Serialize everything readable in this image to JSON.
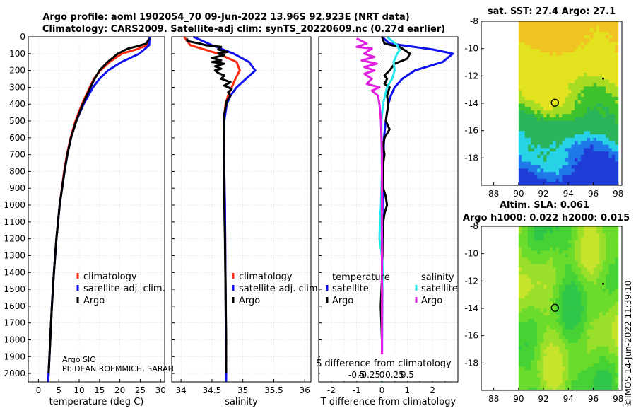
{
  "header": {
    "line1": "Argo profile: aoml 1902054_70 09-Jun-2022 13.96S 92.923E (NRT data)",
    "line2": "Climatology: CARS2009. Satellite-adj clim: synTS_20220609.nc (0.27d earlier)"
  },
  "credit": "©IMOS 14-Jun-2022 11:39:10",
  "colors": {
    "red": "#ff2a10",
    "blue": "#1010f0",
    "black": "#000000",
    "cyan": "#20e8e8",
    "magenta": "#e020e0"
  },
  "depth_axis": {
    "ylim": [
      2050,
      0
    ],
    "ticks": [
      0,
      100,
      200,
      300,
      400,
      500,
      600,
      700,
      800,
      900,
      1000,
      1100,
      1200,
      1300,
      1400,
      1500,
      1600,
      1700,
      1800,
      1900,
      2000
    ]
  },
  "chart_data": [
    {
      "id": "temperature",
      "type": "line",
      "xlabel": "temperature (deg C)",
      "xlim": [
        -2.5,
        31
      ],
      "xticks": [
        0,
        5,
        10,
        15,
        20,
        25,
        30
      ],
      "legend": [
        "climatology",
        "satellite-adj. clim.",
        "Argo"
      ],
      "annotation": [
        "Argo SIO",
        "PI: DEAN ROEMMICH, SARAH"
      ],
      "series": [
        {
          "name": "climatology",
          "color": "red",
          "y": [
            0,
            50,
            75,
            100,
            150,
            200,
            250,
            300,
            400,
            500,
            600,
            700,
            800,
            1000,
            1200,
            1400,
            1600,
            1800,
            2000,
            2050
          ],
          "x": [
            27.3,
            26.8,
            24,
            20.5,
            17.5,
            15.2,
            13.6,
            12.6,
            10.7,
            9.1,
            7.9,
            7.0,
            6.3,
            5.2,
            4.4,
            3.8,
            3.3,
            2.9,
            2.5,
            2.4
          ]
        },
        {
          "name": "satellite-adj. clim.",
          "color": "blue",
          "y": [
            0,
            50,
            100,
            150,
            200,
            250,
            300,
            400,
            500,
            600,
            700,
            800,
            1000,
            1200,
            1400,
            1600,
            1800,
            2000,
            2050
          ],
          "x": [
            27.3,
            27.2,
            24.8,
            20.4,
            17.1,
            15.0,
            13.4,
            11.1,
            9.3,
            8.0,
            7.1,
            6.4,
            5.2,
            4.4,
            3.8,
            3.3,
            2.9,
            2.5,
            2.4
          ]
        },
        {
          "name": "Argo",
          "color": "black",
          "y": [
            10,
            40,
            55,
            70,
            100,
            150,
            200,
            250,
            300,
            400,
            500,
            600,
            700,
            800,
            1000,
            1200,
            1400,
            1600,
            1800,
            2000
          ],
          "x": [
            27.2,
            26.5,
            24.5,
            22,
            19.5,
            17.0,
            15.0,
            13.8,
            12.8,
            10.9,
            9.3,
            8.0,
            7.1,
            6.4,
            5.2,
            4.4,
            3.8,
            3.3,
            2.9,
            2.5
          ]
        }
      ]
    },
    {
      "id": "salinity",
      "type": "line",
      "xlabel": "salinity",
      "xlim": [
        33.85,
        36.1
      ],
      "xticks": [
        34,
        34.5,
        35,
        35.5,
        36
      ],
      "xticklabels": [
        "34",
        "34.5",
        "35",
        "35.5",
        "36"
      ],
      "legend": [
        "climatology",
        "satellite-adj. clim.",
        "Argo"
      ],
      "series": [
        {
          "name": "climatology",
          "color": "red",
          "y": [
            0,
            50,
            100,
            150,
            200,
            250,
            300,
            350,
            400,
            500,
            600,
            800,
            1000,
            1500,
            2000,
            2050
          ],
          "x": [
            34.05,
            34.15,
            34.6,
            34.9,
            34.95,
            34.88,
            34.82,
            34.76,
            34.72,
            34.69,
            34.69,
            34.7,
            34.71,
            34.72,
            34.73,
            34.73
          ]
        },
        {
          "name": "satellite-adj. clim.",
          "color": "blue",
          "y": [
            0,
            50,
            100,
            150,
            200,
            250,
            300,
            350,
            400,
            500,
            600,
            800,
            1000,
            1500,
            2000,
            2050
          ],
          "x": [
            34.2,
            34.5,
            34.85,
            35.1,
            35.2,
            35.05,
            34.9,
            34.8,
            34.74,
            34.7,
            34.69,
            34.7,
            34.71,
            34.72,
            34.73,
            34.73
          ]
        },
        {
          "name": "Argo",
          "color": "black",
          "y": [
            10,
            25,
            40,
            50,
            60,
            75,
            90,
            100,
            110,
            125,
            140,
            150,
            160,
            175,
            190,
            200,
            215,
            230,
            250,
            270,
            290,
            310,
            330,
            350,
            380,
            420,
            480,
            550,
            650,
            800,
            1000,
            1200,
            1500,
            1800,
            2000
          ],
          "x": [
            34.1,
            34.1,
            34.3,
            34.4,
            34.65,
            34.6,
            34.75,
            34.6,
            34.7,
            34.5,
            34.65,
            34.5,
            34.7,
            34.55,
            34.65,
            34.55,
            34.6,
            34.7,
            34.65,
            34.8,
            34.7,
            34.82,
            34.76,
            34.8,
            34.74,
            34.72,
            34.69,
            34.69,
            34.69,
            34.7,
            34.7,
            34.71,
            34.72,
            34.73,
            34.73
          ]
        }
      ]
    },
    {
      "id": "difference",
      "type": "line",
      "xlabel": "T difference from climatology",
      "top_label": "S difference from climatology",
      "xlim": [
        -2.5,
        3.0
      ],
      "xticks": [
        -2,
        -1.5,
        -1,
        -0.5,
        0,
        0.5,
        1,
        1.5,
        2,
        2.5
      ],
      "xticklabels": [
        "-2",
        "",
        "-1",
        "",
        "0",
        "",
        "1",
        "",
        "2",
        ""
      ],
      "sticks": [
        -0.5,
        -0.25,
        0,
        0.25,
        0.5
      ],
      "sticklabels": [
        "-0.5",
        "-0.25",
        "0",
        "0.25",
        "0.5"
      ],
      "s_scale": 0.5,
      "legend_temperature": {
        "title": "temperature",
        "items": [
          "satellite",
          "Argo"
        ]
      },
      "legend_salinity": {
        "title": "salinity",
        "items": [
          "satellite",
          "Argo"
        ]
      },
      "series": [
        {
          "name": "T satellite",
          "color": "blue",
          "y": [
            0,
            40,
            75,
            100,
            150,
            200,
            250,
            300,
            350,
            400,
            500,
            600,
            800,
            1000,
            1500,
            2000,
            2050
          ],
          "x": [
            0,
            0.3,
            2.0,
            2.8,
            2.4,
            1.3,
            0.8,
            0.5,
            0.35,
            0.25,
            0.15,
            0.08,
            0.05,
            0.02,
            0.01,
            0,
            0
          ]
        },
        {
          "name": "T Argo",
          "color": "black",
          "y": [
            0,
            40,
            60,
            80,
            100,
            130,
            160,
            180,
            200,
            230,
            250,
            280,
            300,
            350,
            400,
            450,
            500,
            550,
            600,
            650,
            700,
            750,
            800,
            900,
            950,
            1000,
            1050,
            1100,
            1200,
            1400,
            1600,
            1800,
            2000,
            2050
          ],
          "x": [
            0,
            0.1,
            0.7,
            0.9,
            1.1,
            1.0,
            0.5,
            0.4,
            0.3,
            0.1,
            0.2,
            0.1,
            0.3,
            0.2,
            0.25,
            0.2,
            0.15,
            0.3,
            0.1,
            0.05,
            0.1,
            0.05,
            0.05,
            0.05,
            0.15,
            0.2,
            0.1,
            0.05,
            0.02,
            0.01,
            -0.05,
            0,
            0,
            0
          ]
        },
        {
          "name": "S satellite",
          "color": "cyan",
          "y": [
            0,
            50,
            80,
            100,
            150,
            200,
            250,
            300,
            350,
            400,
            500,
            600,
            800,
            1000,
            1100,
            1200,
            1300,
            1400,
            1500,
            1700,
            2000,
            2050
          ],
          "x": [
            0.1,
            0.3,
            0.35,
            0.3,
            0.23,
            0.25,
            0.2,
            0.1,
            0.06,
            0.02,
            -0.01,
            -0.01,
            0.0,
            -0.02,
            -0.04,
            -0.05,
            0.0,
            0.02,
            0.0,
            0.0,
            0.0,
            0.0
          ]
        },
        {
          "name": "S Argo",
          "color": "magenta",
          "y": [
            10,
            40,
            60,
            70,
            90,
            100,
            120,
            140,
            160,
            180,
            200,
            220,
            250,
            280,
            300,
            320,
            350,
            400,
            500,
            700,
            1000,
            1500,
            2000
          ],
          "x": [
            -0.5,
            -0.3,
            -0.5,
            -0.2,
            -0.3,
            -0.35,
            -0.15,
            -0.4,
            -0.1,
            -0.35,
            -0.15,
            -0.35,
            -0.2,
            -0.3,
            -0.05,
            -0.2,
            -0.08,
            -0.05,
            -0.02,
            0.0,
            0.0,
            0.0,
            0.0
          ]
        }
      ]
    },
    {
      "id": "sst-map",
      "type": "heatmap",
      "title": "sat. SST: 27.4 Argo: 27.1",
      "xlim": [
        87,
        98.3
      ],
      "ylim": [
        -20,
        -8
      ],
      "data_xlim": [
        90,
        98
      ],
      "data_ylim": [
        -20,
        -8
      ],
      "xticks": [
        88,
        90,
        92,
        94,
        96,
        98
      ],
      "yticks": [
        -8,
        -10,
        -12,
        -14,
        -16,
        -18
      ],
      "profile": {
        "lon": 92.923,
        "lat": -13.96
      },
      "point": {
        "lon": 96.8,
        "lat": -12.2
      },
      "palette": [
        "#1e3cd6",
        "#1e78e8",
        "#28d2e6",
        "#2bb45a",
        "#3dc22e",
        "#a8dc23",
        "#e2e21f",
        "#f0c323"
      ]
    },
    {
      "id": "sla-map",
      "type": "heatmap",
      "title1": "Altim. SLA: 0.061",
      "title2": "Argo h1000: 0.022 h2000: 0.015",
      "xlim": [
        87,
        98.3
      ],
      "ylim": [
        -20,
        -8
      ],
      "data_xlim": [
        90,
        98
      ],
      "data_ylim": [
        -20,
        -8
      ],
      "xticks": [
        88,
        90,
        92,
        94,
        96,
        98
      ],
      "yticks": [
        -8,
        -10,
        -12,
        -14,
        -16,
        -18
      ],
      "profile": {
        "lon": 92.923,
        "lat": -13.96
      },
      "point": {
        "lon": 96.8,
        "lat": -12.2
      },
      "palette": [
        "#2fc64a",
        "#46d235",
        "#6cdc2c",
        "#9ae02b",
        "#c8e32c"
      ]
    }
  ]
}
